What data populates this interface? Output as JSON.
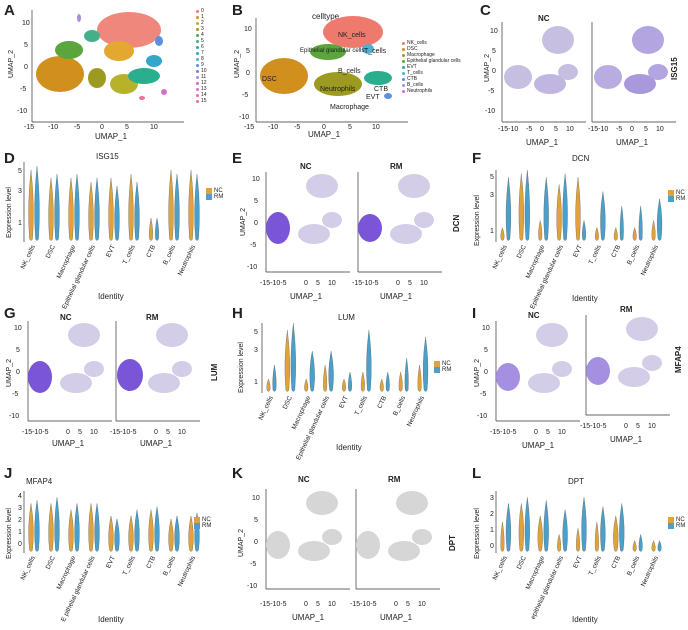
{
  "panels": {
    "A": {
      "label": "A",
      "xlabel": "UMAP_1",
      "ylabel": "UMAP_2",
      "xticks": [
        "-15",
        "-10",
        "-5",
        "0",
        "5",
        "10"
      ],
      "yticks": [
        "10",
        "5",
        "0",
        "-5",
        "-10"
      ],
      "legend": [
        "0",
        "1",
        "2",
        "3",
        "4",
        "5",
        "6",
        "7",
        "8",
        "9",
        "10",
        "11",
        "12",
        "13",
        "14",
        "15"
      ]
    },
    "B": {
      "label": "B",
      "title": "celltype",
      "xlabel": "UMAP_1",
      "ylabel": "UMAP_2",
      "xticks": [
        "-15",
        "-10",
        "-5",
        "0",
        "5",
        "10"
      ],
      "yticks": [
        "10",
        "5",
        "0",
        "-5",
        "-10"
      ],
      "legend": [
        "NK_cells",
        "DSC",
        "Macrophage",
        "Epithelial glandular cells",
        "EVT",
        "T_cells",
        "CTB",
        "B_cells",
        "Neutrophils"
      ],
      "annotations": [
        "NK_cells",
        "Epithelial glandular cells",
        "T_cells",
        "DSC",
        "B_cells",
        "Neutrophils",
        "EVT",
        "CTB",
        "Macrophage"
      ]
    },
    "C": {
      "label": "C",
      "left_title": "NC",
      "right_title": "ISG15",
      "xlabel": "UMAP_1",
      "ylabel": "UMAP_2",
      "xticks": [
        "-15-10",
        "-5",
        "0",
        "5",
        "10"
      ],
      "yticks": [
        "10",
        "5",
        "0",
        "-5",
        "-10"
      ]
    },
    "D": {
      "label": "D",
      "title": "ISG15",
      "ylabel": "Expression level",
      "xlabel": "Identity",
      "yticks": [
        "5",
        "3",
        "1"
      ],
      "categories": [
        "NK_cells",
        "DSC",
        "Macrophage",
        "Epithelial glandular cells",
        "EVT",
        "T_cells",
        "CTB",
        "B_cells",
        "Neutrophils"
      ],
      "legend": [
        "NC",
        "RM"
      ]
    },
    "E": {
      "label": "E",
      "left_title": "NC",
      "right_title": "RM",
      "gene": "DCN",
      "xlabel": "UMAP_1",
      "ylabel": "UMAP_2",
      "xticks": [
        "-15-10-5",
        "0",
        "5",
        "10"
      ],
      "yticks": [
        "10",
        "5",
        "0",
        "-5",
        "-10"
      ]
    },
    "F": {
      "label": "F",
      "title": "DCN",
      "ylabel": "Expression level",
      "xlabel": "Identity",
      "yticks": [
        "5",
        "3",
        "1"
      ],
      "categories": [
        "NK_cells",
        "DSC",
        "Macrophage",
        "Epithelial glandular cells",
        "EVT",
        "T_cells",
        "CTB",
        "B_cells",
        "Neutrophils"
      ],
      "legend": [
        "NC",
        "RM"
      ]
    },
    "G": {
      "label": "G",
      "left_title": "NC",
      "right_title": "RM",
      "gene": "LUM",
      "xlabel": "UMAP_1",
      "ylabel": "UMAP_2",
      "xticks": [
        "-15-10-5",
        "0",
        "5",
        "10"
      ],
      "yticks": [
        "10",
        "5",
        "0",
        "-5",
        "-10"
      ]
    },
    "H": {
      "label": "H",
      "title": "LUM",
      "ylabel": "Expression level",
      "xlabel": "Identity",
      "yticks": [
        "5",
        "3",
        "1"
      ],
      "categories": [
        "NK_cells",
        "DSC",
        "Macrophage",
        "Epithelial glandular cells",
        "EVT",
        "T_cells",
        "CTB",
        "B_cells",
        "Neutrophils"
      ],
      "legend": [
        "NC",
        "RM"
      ]
    },
    "I": {
      "label": "I",
      "left_title": "NC",
      "right_title": "RM",
      "gene": "MFAP4",
      "xlabel": "UMAP_1",
      "ylabel": "UMAP_2",
      "xticks": [
        "-15-10-5",
        "0",
        "5",
        "10"
      ],
      "yticks": [
        "10",
        "5",
        "0",
        "-5",
        "-10"
      ]
    },
    "J": {
      "label": "J",
      "title": "MFAP4",
      "ylabel": "Expression level",
      "xlabel": "Identity",
      "yticks": [
        "4",
        "3",
        "2",
        "1",
        "0"
      ],
      "categories": [
        "NK_cells",
        "DSC",
        "Macrophage",
        "E pithelial glandular cells",
        "EVT",
        "T_cells",
        "CTB",
        "B_cells",
        "Neutrophils"
      ],
      "legend": [
        "NC",
        "RM"
      ]
    },
    "K": {
      "label": "K",
      "left_title": "NC",
      "right_title": "RM",
      "gene": "DPT",
      "xlabel": "UMAP_1",
      "ylabel": "UMAP_2",
      "xticks": [
        "-15-10-5",
        "0",
        "5",
        "10"
      ],
      "yticks": [
        "10",
        "5",
        "0",
        "-5",
        "-10"
      ]
    },
    "L": {
      "label": "L",
      "title": "DPT",
      "ylabel": "Expression level",
      "xlabel": "Identity",
      "yticks": [
        "3",
        "2",
        "1",
        "0"
      ],
      "categories": [
        "NK_cells",
        "DSC",
        "Macrophage",
        "epithelial glandular cells",
        "EVT",
        "T_cells",
        "CTB",
        "B_cells",
        "Neutrophils"
      ],
      "legend": [
        "NC",
        "RM"
      ]
    }
  },
  "colors": {
    "nc": "#e0a33a",
    "rm": "#4b9fc9",
    "purple": "#7b55d8",
    "lightpurple": "#c7bfe2",
    "grey": "#d6d6d6"
  }
}
